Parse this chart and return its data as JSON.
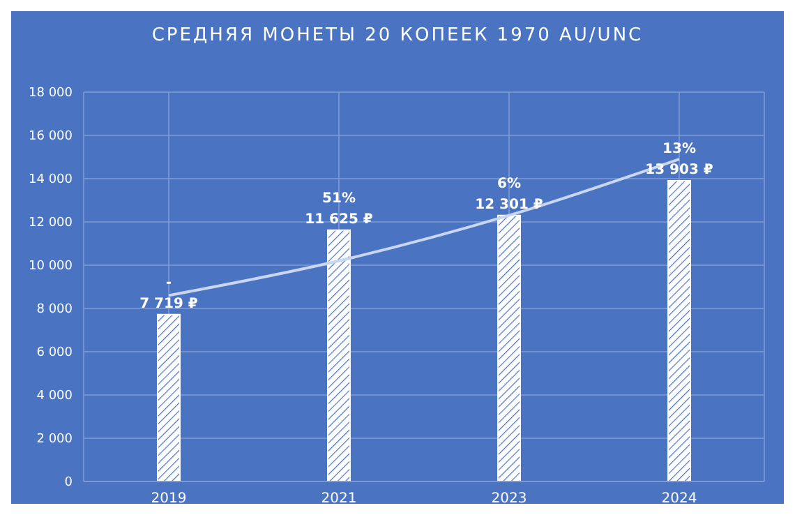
{
  "chart_data": {
    "type": "bar",
    "title": "СРЕДНЯЯ МОНЕТЫ 20 КОПЕЕК 1970 AU/UNC",
    "categories": [
      "2019",
      "2021",
      "2023",
      "2024"
    ],
    "series": [
      {
        "color": "#ffffff",
        "values": [
          7719,
          11625,
          12301,
          13903
        ],
        "value_labels": [
          "7 719 ₽",
          "11 625 ₽",
          "12 301 ₽",
          "13 903 ₽"
        ]
      },
      {
        "type": "line",
        "color": "#c9d6f0",
        "values": [
          8600,
          10200,
          12300,
          14900
        ]
      }
    ],
    "annotations": [
      {
        "text": "-",
        "x": "2019",
        "y": 7719
      },
      {
        "text": "51%",
        "x": "2021",
        "y": 11625
      },
      {
        "text": "6%",
        "x": "2023",
        "y": 12301
      },
      {
        "text": "13%",
        "x": "2024",
        "y": 13903
      }
    ],
    "ylim": [
      0,
      18000
    ],
    "yticks": [
      {
        "value": 0,
        "label": "0"
      },
      {
        "value": 2000,
        "label": "2 000"
      },
      {
        "value": 4000,
        "label": "4 000"
      },
      {
        "value": 6000,
        "label": "6 000"
      },
      {
        "value": 8000,
        "label": "8 000"
      },
      {
        "value": 10000,
        "label": "10 000"
      },
      {
        "value": 12000,
        "label": "12 000"
      },
      {
        "value": 14000,
        "label": "14 000"
      },
      {
        "value": 16000,
        "label": "16 000"
      },
      {
        "value": 18000,
        "label": "18 000"
      }
    ],
    "grid": true,
    "marker": "none"
  }
}
